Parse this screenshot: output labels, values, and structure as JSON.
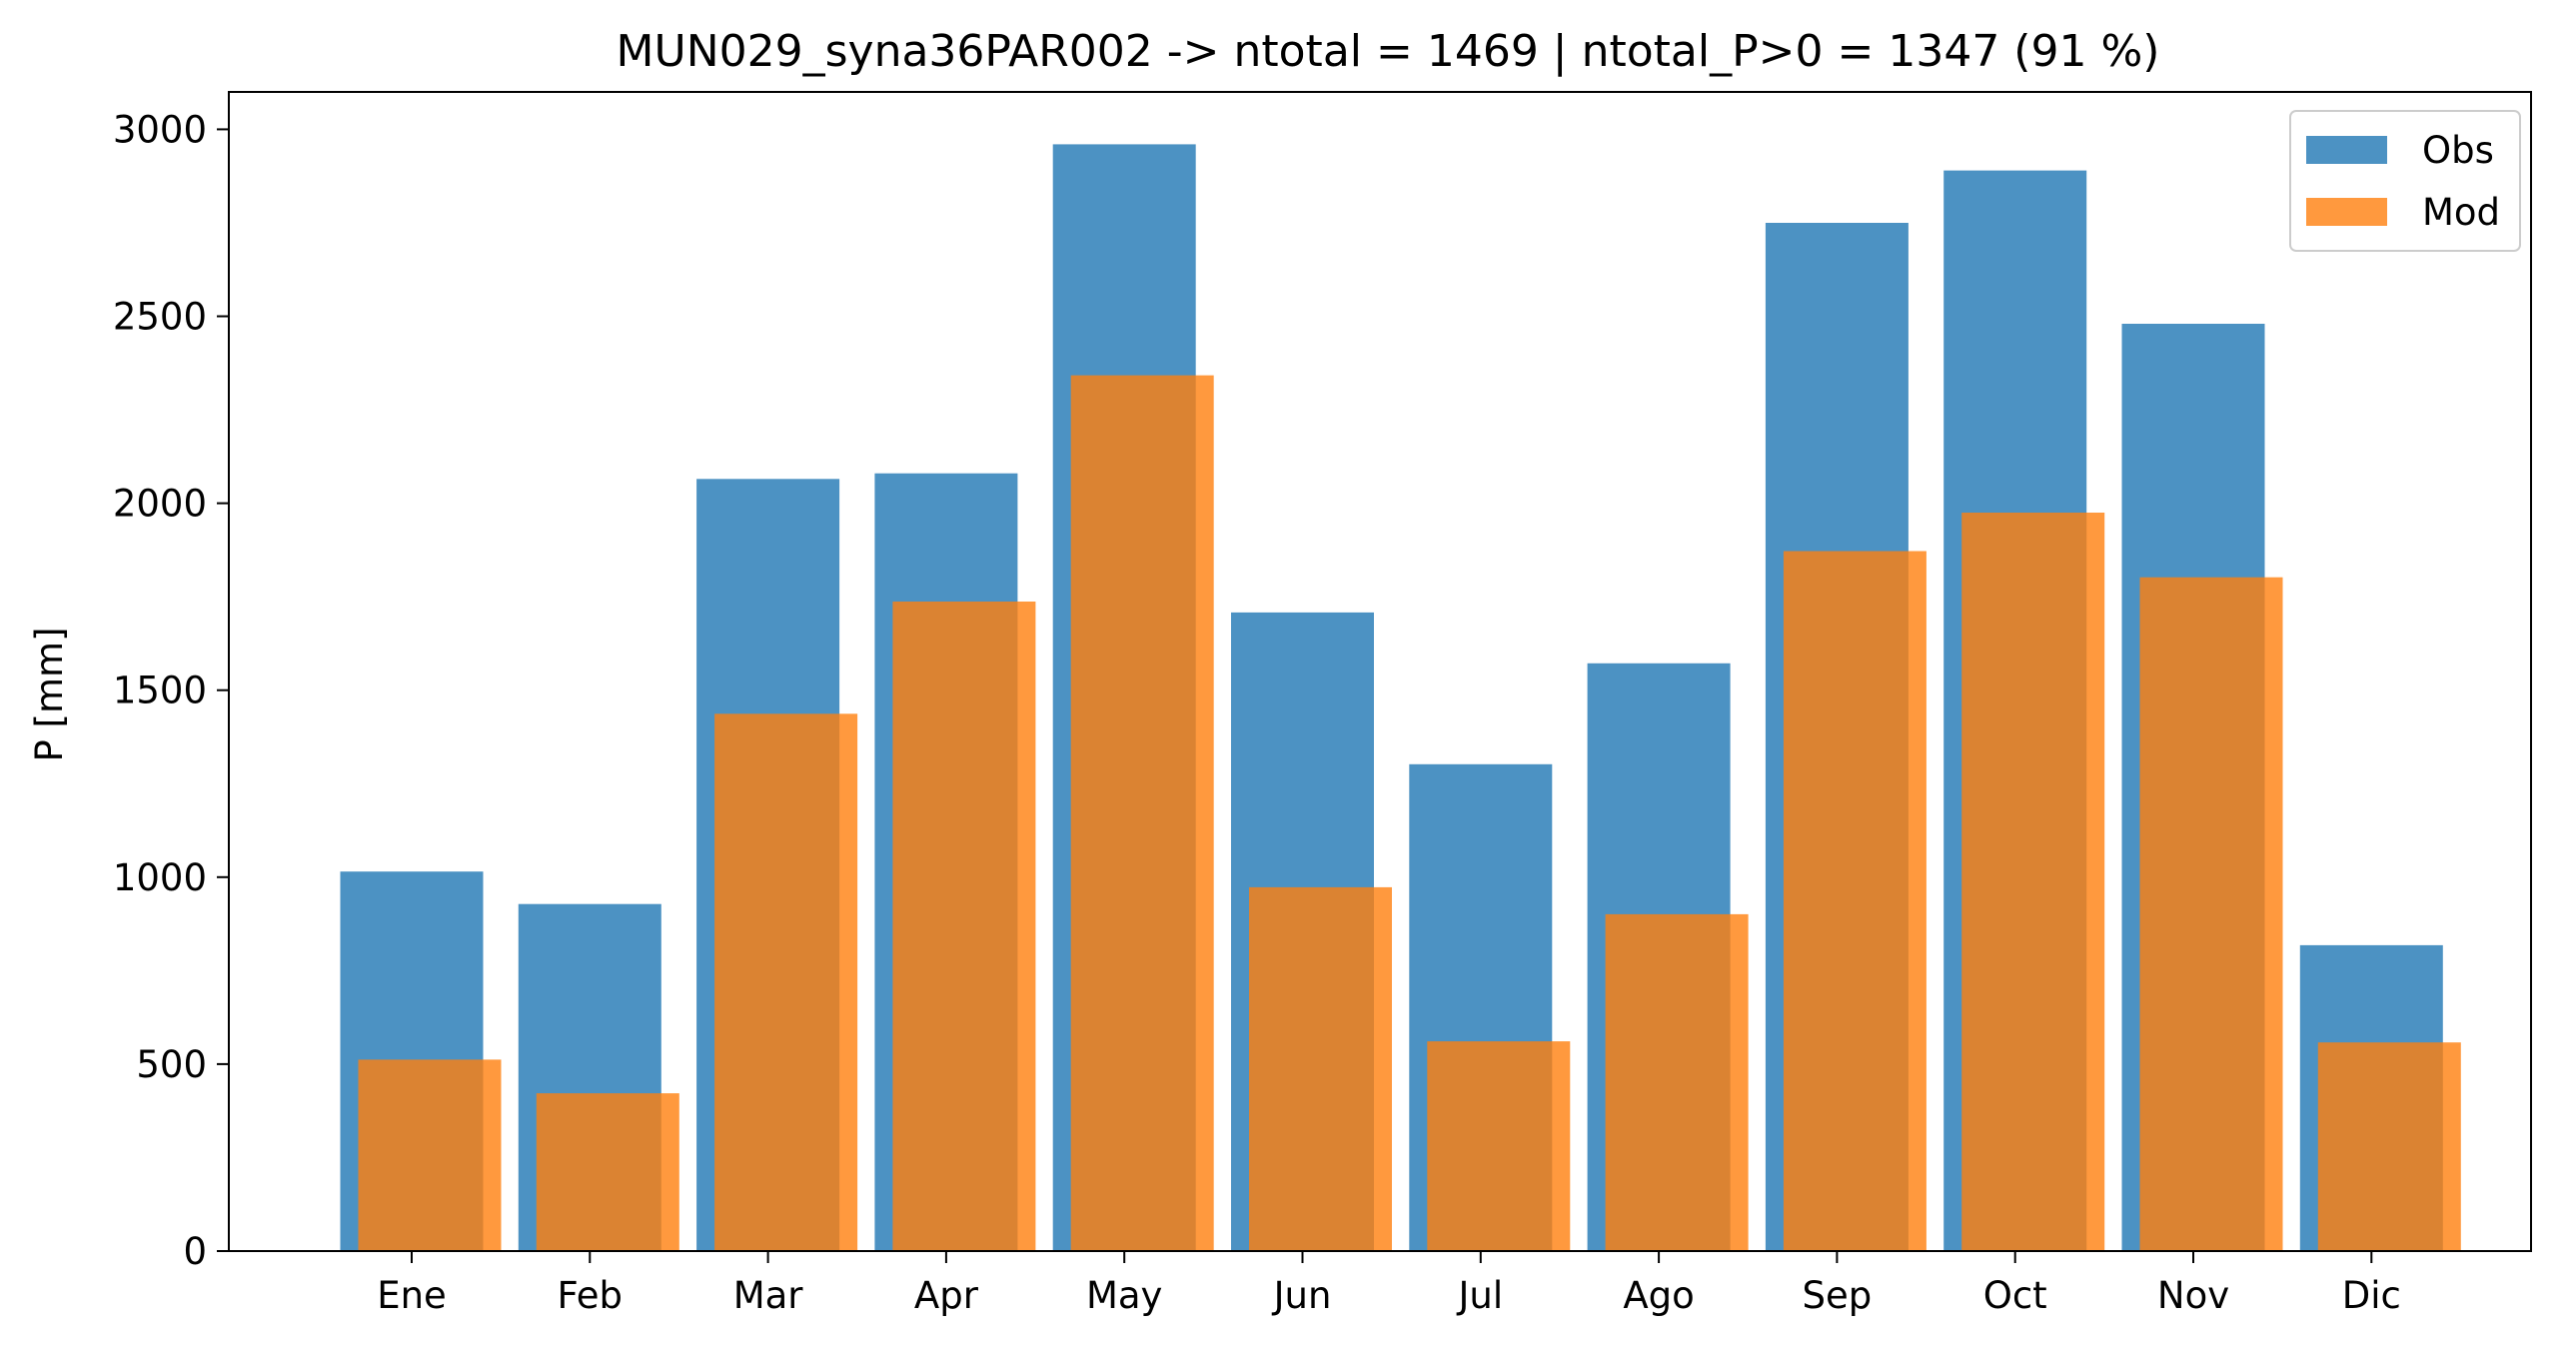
{
  "chart_data": {
    "type": "bar",
    "title": "MUN029_syna36PAR002 -> ntotal = 1469 | ntotal_P>0 = 1347 (91 %)",
    "xlabel": "",
    "ylabel": "P [mm]",
    "categories": [
      "Ene",
      "Feb",
      "Mar",
      "Apr",
      "May",
      "Jun",
      "Jul",
      "Ago",
      "Sep",
      "Oct",
      "Nov",
      "Dic"
    ],
    "series": [
      {
        "name": "Obs",
        "color": "#1f77b4",
        "opacity": 0.8,
        "values": [
          1015,
          928,
          2065,
          2080,
          2960,
          1708,
          1302,
          1572,
          2750,
          2890,
          2480,
          818
        ]
      },
      {
        "name": "Mod",
        "color": "#ff7f0e",
        "opacity": 0.8,
        "values": [
          512,
          422,
          1437,
          1737,
          2342,
          973,
          561,
          901,
          1872,
          1975,
          1802,
          558
        ]
      }
    ],
    "ylim": [
      0,
      3100
    ],
    "yticks": [
      0,
      500,
      1000,
      1500,
      2000,
      2500,
      3000
    ],
    "grid": false,
    "legend": "top-right"
  }
}
